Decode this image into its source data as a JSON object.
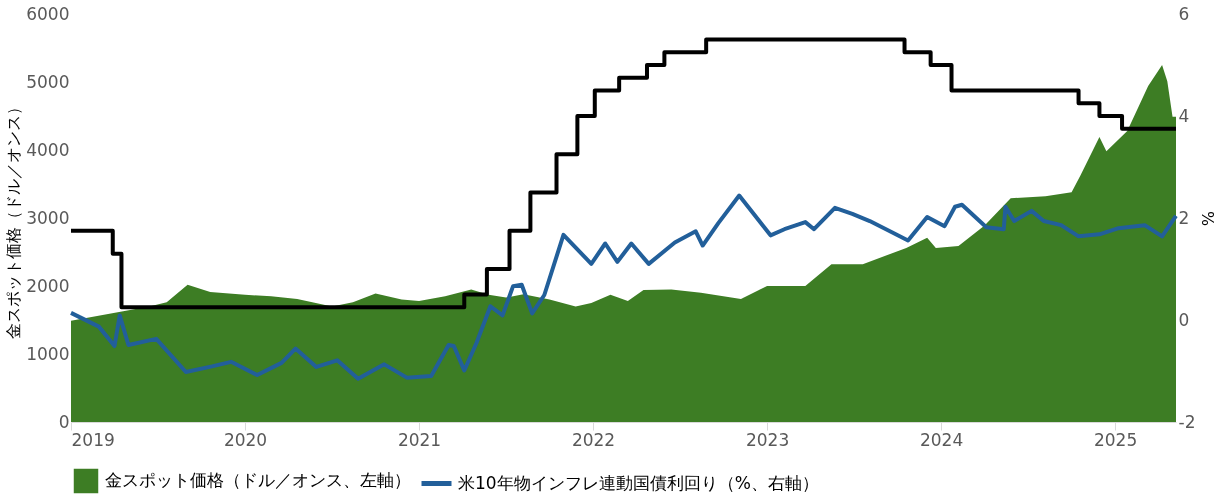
{
  "chart_data": {
    "type": "area",
    "ylabel": "金スポット価格（ドル／オンス）",
    "y2label": "%",
    "xlim": [
      2019,
      2025.35
    ],
    "xticks": [
      2019,
      2020,
      2021,
      2022,
      2023,
      2024,
      2025
    ],
    "ylim": [
      0,
      6000
    ],
    "yticks": [
      0,
      1000,
      2000,
      3000,
      4000,
      5000,
      6000
    ],
    "y2lim": [
      -2,
      6
    ],
    "y2ticks": [
      -2,
      0,
      2,
      4,
      6
    ],
    "grid": false,
    "legend": "bottom",
    "series": [
      {
        "name": "金スポット価格（ドル／オンス、左軸）",
        "color": "#3d7d24",
        "x": [
          2019.0,
          2019.15,
          2019.3,
          2019.45,
          2019.55,
          2019.67,
          2019.8,
          2020.0,
          2020.15,
          2020.3,
          2020.5,
          2020.62,
          2020.75,
          2020.9,
          2021.0,
          2021.15,
          2021.3,
          2021.4,
          2021.5,
          2021.6,
          2021.75,
          2021.9,
          2021.99,
          2022.1,
          2022.2,
          2022.29,
          2022.45,
          2022.62,
          2022.85,
          2023.0,
          2023.22,
          2023.37,
          2023.55,
          2023.8,
          2023.92,
          2023.97,
          2024.1,
          2024.25,
          2024.4,
          2024.6,
          2024.75,
          2024.8,
          2024.91,
          2024.95,
          2025.07,
          2025.19,
          2025.27,
          2025.3,
          2025.33,
          2025.35
        ],
        "values": [
          1490,
          1560,
          1630,
          1700,
          1760,
          2020,
          1910,
          1870,
          1850,
          1810,
          1700,
          1760,
          1890,
          1800,
          1780,
          1850,
          1950,
          1870,
          1830,
          1880,
          1800,
          1700,
          1750,
          1870,
          1780,
          1940,
          1950,
          1900,
          1810,
          2000,
          2000,
          2320,
          2320,
          2560,
          2710,
          2560,
          2590,
          2890,
          3290,
          3320,
          3380,
          3620,
          4190,
          3980,
          4280,
          4940,
          5250,
          5010,
          4490,
          4490
        ]
      },
      {
        "name": "米10年物インフレ連動国債利回り（%、右軸）",
        "type": "line",
        "axis": "y2",
        "color": "#225f9a",
        "x": [
          2019.0,
          2019.16,
          2019.25,
          2019.28,
          2019.33,
          2019.49,
          2019.66,
          2019.81,
          2019.92,
          2020.07,
          2020.21,
          2020.29,
          2020.41,
          2020.53,
          2020.65,
          2020.8,
          2020.93,
          2021.07,
          2021.17,
          2021.2,
          2021.26,
          2021.33,
          2021.41,
          2021.48,
          2021.54,
          2021.59,
          2021.65,
          2021.72,
          2021.83,
          2021.99,
          2022.07,
          2022.14,
          2022.22,
          2022.32,
          2022.47,
          2022.59,
          2022.63,
          2022.72,
          2022.84,
          2023.02,
          2023.1,
          2023.22,
          2023.27,
          2023.39,
          2023.49,
          2023.59,
          2023.74,
          2023.81,
          2023.92,
          2024.02,
          2024.08,
          2024.12,
          2024.26,
          2024.36,
          2024.37,
          2024.42,
          2024.52,
          2024.59,
          2024.69,
          2024.79,
          2024.91,
          2025.02,
          2025.17,
          2025.27,
          2025.35
        ],
        "values": [
          0.14,
          -0.13,
          -0.51,
          0.09,
          -0.49,
          -0.37,
          -1.02,
          -0.91,
          -0.82,
          -1.08,
          -0.84,
          -0.56,
          -0.92,
          -0.79,
          -1.15,
          -0.87,
          -1.13,
          -1.1,
          -0.49,
          -0.51,
          -0.99,
          -0.45,
          0.27,
          0.09,
          0.66,
          0.69,
          0.13,
          0.49,
          1.67,
          1.1,
          1.5,
          1.14,
          1.5,
          1.1,
          1.52,
          1.74,
          1.46,
          1.9,
          2.44,
          1.66,
          1.78,
          1.92,
          1.78,
          2.2,
          2.08,
          1.94,
          1.68,
          1.56,
          2.02,
          1.84,
          2.22,
          2.26,
          1.82,
          1.78,
          2.22,
          1.94,
          2.14,
          1.94,
          1.86,
          1.64,
          1.68,
          1.8,
          1.86,
          1.64,
          2.04
        ]
      },
      {
        "type": "step",
        "axis": "y2",
        "color": "#000000",
        "x": [
          2019.0,
          2019.24,
          2019.29,
          2021.26,
          2021.39,
          2021.52,
          2021.64,
          2021.79,
          2021.91,
          2022.01,
          2022.15,
          2022.31,
          2022.41,
          2022.65,
          2023.79,
          2023.94,
          2024.06,
          2024.79,
          2024.91,
          2025.04,
          2025.35
        ],
        "values": [
          1.75,
          1.3,
          0.25,
          0.5,
          1.0,
          1.75,
          2.5,
          3.25,
          4.0,
          4.5,
          4.75,
          5.0,
          5.25,
          5.5,
          5.25,
          5.0,
          4.5,
          4.25,
          4.0,
          3.75,
          3.75
        ]
      }
    ]
  }
}
